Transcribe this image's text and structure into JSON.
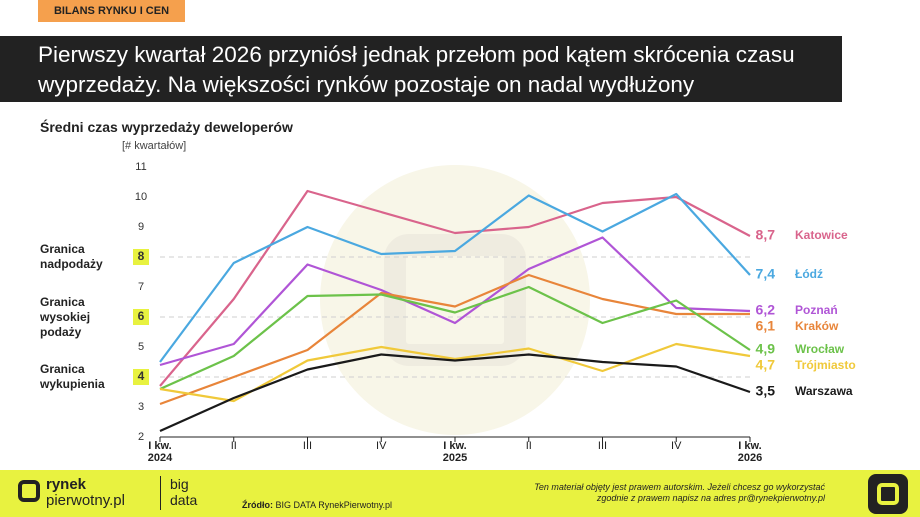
{
  "header": {
    "tag": "BILANS RYNKU I CEN",
    "title": "Pierwszy kwartał 2026 przyniósł jednak przełom pod kątem skrócenia czasu wyprzedaży. Na większości rynków pozostaje on nadal wydłużony"
  },
  "chart_data": {
    "type": "line",
    "title": "Średni czas wyprzedaży deweloperów",
    "y_label": "[# kwartałów]",
    "categories": [
      "I kw. 2024",
      "II",
      "III",
      "IV",
      "I kw. 2025",
      "II",
      "III",
      "IV",
      "I kw. 2026"
    ],
    "ylim": [
      2,
      11
    ],
    "yticks": [
      2,
      3,
      4,
      5,
      6,
      7,
      8,
      9,
      10,
      11
    ],
    "grid": false,
    "reference_lines": [
      {
        "value": 8,
        "label": "Granica nadpodaży"
      },
      {
        "value": 6,
        "label": "Granica wysokiej podaży"
      },
      {
        "value": 4,
        "label": "Granica wykupienia"
      }
    ],
    "series": [
      {
        "name": "Katowice",
        "color": "#d9648c",
        "values": [
          3.7,
          6.6,
          10.2,
          9.5,
          8.8,
          9.0,
          9.8,
          10.0,
          8.7
        ],
        "value_labels": [
          null,
          null,
          null,
          null,
          null,
          null,
          null,
          null,
          "8,7"
        ]
      },
      {
        "name": "Łódź",
        "color": "#4aa8e0",
        "values": [
          4.5,
          7.8,
          9.0,
          8.1,
          8.2,
          10.05,
          8.85,
          10.1,
          7.4
        ],
        "value_labels": [
          null,
          null,
          null,
          null,
          null,
          null,
          null,
          null,
          "7,4"
        ]
      },
      {
        "name": "Poznań",
        "color": "#b055d6",
        "values": [
          4.4,
          5.1,
          7.75,
          6.9,
          5.8,
          7.6,
          8.65,
          6.3,
          6.2
        ],
        "value_labels": [
          null,
          null,
          null,
          null,
          null,
          null,
          null,
          null,
          "6,2"
        ]
      },
      {
        "name": "Kraków",
        "color": "#e8853a",
        "values": [
          3.1,
          4.0,
          4.9,
          6.8,
          6.35,
          7.4,
          6.6,
          6.1,
          6.1
        ],
        "value_labels": [
          null,
          null,
          null,
          null,
          null,
          null,
          null,
          null,
          "6,1"
        ]
      },
      {
        "name": "Wrocław",
        "color": "#6cc24a",
        "values": [
          3.6,
          4.7,
          6.7,
          6.75,
          6.15,
          7.0,
          5.8,
          6.55,
          4.9
        ],
        "value_labels": [
          null,
          null,
          null,
          null,
          null,
          null,
          null,
          null,
          "4,9"
        ]
      },
      {
        "name": "Trójmiasto",
        "color": "#f0c93a",
        "values": [
          3.6,
          3.2,
          4.55,
          5.0,
          4.6,
          4.95,
          4.2,
          5.1,
          4.7
        ],
        "value_labels": [
          null,
          null,
          null,
          null,
          null,
          null,
          null,
          null,
          "4,7"
        ]
      },
      {
        "name": "Warszawa",
        "color": "#1a1a1a",
        "values": [
          2.2,
          3.3,
          4.25,
          4.75,
          4.55,
          4.75,
          4.5,
          4.35,
          3.5
        ],
        "value_labels": [
          null,
          null,
          null,
          null,
          null,
          null,
          null,
          null,
          "3,5"
        ]
      }
    ]
  },
  "footer": {
    "logo_top": "rynek",
    "logo_bottom": "pierwotny.pl",
    "logo_big": "big",
    "logo_data": "data",
    "source_label": "Źródło:",
    "source": "BIG DATA RynekPierwotny.pl",
    "copyright": "Ten materiał objęty jest prawem autorskim. Jeżeli chcesz go wykorzystać zgodnie z prawem napisz na adres pr@rynekpierwotny.pl"
  }
}
